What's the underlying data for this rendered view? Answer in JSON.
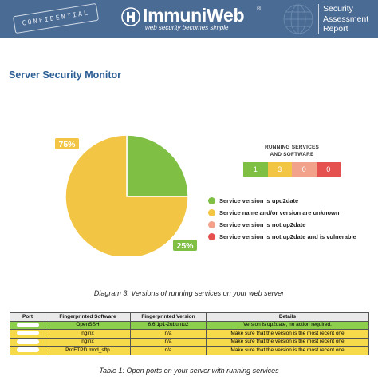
{
  "header": {
    "stamp": "CONFIDENTIAL",
    "logo_text": "ImmuniWeb",
    "logo_reg": "®",
    "tagline": "web security becomes simple",
    "report_title": [
      "Security",
      "Assessment",
      "Report"
    ],
    "icon": "immuniweb-logo-icon",
    "globe_icon": "network-globe-icon",
    "colors": {
      "header_bg": "#4a6b94"
    }
  },
  "section": {
    "title": "Server Security Monitor"
  },
  "chart_data": {
    "type": "pie",
    "title": "",
    "slices": [
      {
        "label": "Service version is upd2date",
        "value": 25,
        "display": "25%",
        "color": "#7fbf44"
      },
      {
        "label": "Service name and/or version are unknown",
        "value": 75,
        "display": "75%",
        "color": "#f2c644"
      }
    ],
    "legend": "right"
  },
  "summary": {
    "title_line1": "RUNNING SERVICES",
    "title_line2": "AND SOFTWARE",
    "counts": [
      {
        "value": "1",
        "color": "#7fbf44"
      },
      {
        "value": "3",
        "color": "#f2c644"
      },
      {
        "value": "0",
        "color": "#f2a28a"
      },
      {
        "value": "0",
        "color": "#e4514f"
      }
    ]
  },
  "legend_items": [
    {
      "label": "Service version is upd2date",
      "color": "#7fbf44"
    },
    {
      "label": "Service name and/or version are unknown",
      "color": "#f2c644"
    },
    {
      "label": "Service version is not up2date",
      "color": "#f2a28a"
    },
    {
      "label": "Service version is not up2date and is vulnerable",
      "color": "#e4514f"
    }
  ],
  "diagram_caption": "Diagram 3: Versions of running services on your web server",
  "table": {
    "headers": [
      "Port",
      "Fingerprinted Software",
      "Fingerprinted Version",
      "Details"
    ],
    "rows": [
      {
        "software": "OpenSSH",
        "version": "6.6.1p1-2ubuntu2",
        "details": "Version is up2date, no action required.",
        "status": "green"
      },
      {
        "software": "nginx",
        "version": "n/a",
        "details": "Make sure that the version is the most recent one",
        "status": "yellow"
      },
      {
        "software": "nginx",
        "version": "n/a",
        "details": "Make sure that the version is the most recent one",
        "status": "yellow"
      },
      {
        "software": "ProFTPD mod_sftp",
        "version": "n/a",
        "details": "Make sure that the version is the most recent one",
        "status": "yellow"
      }
    ]
  },
  "table_caption": "Table 1: Open ports on your server with running services"
}
